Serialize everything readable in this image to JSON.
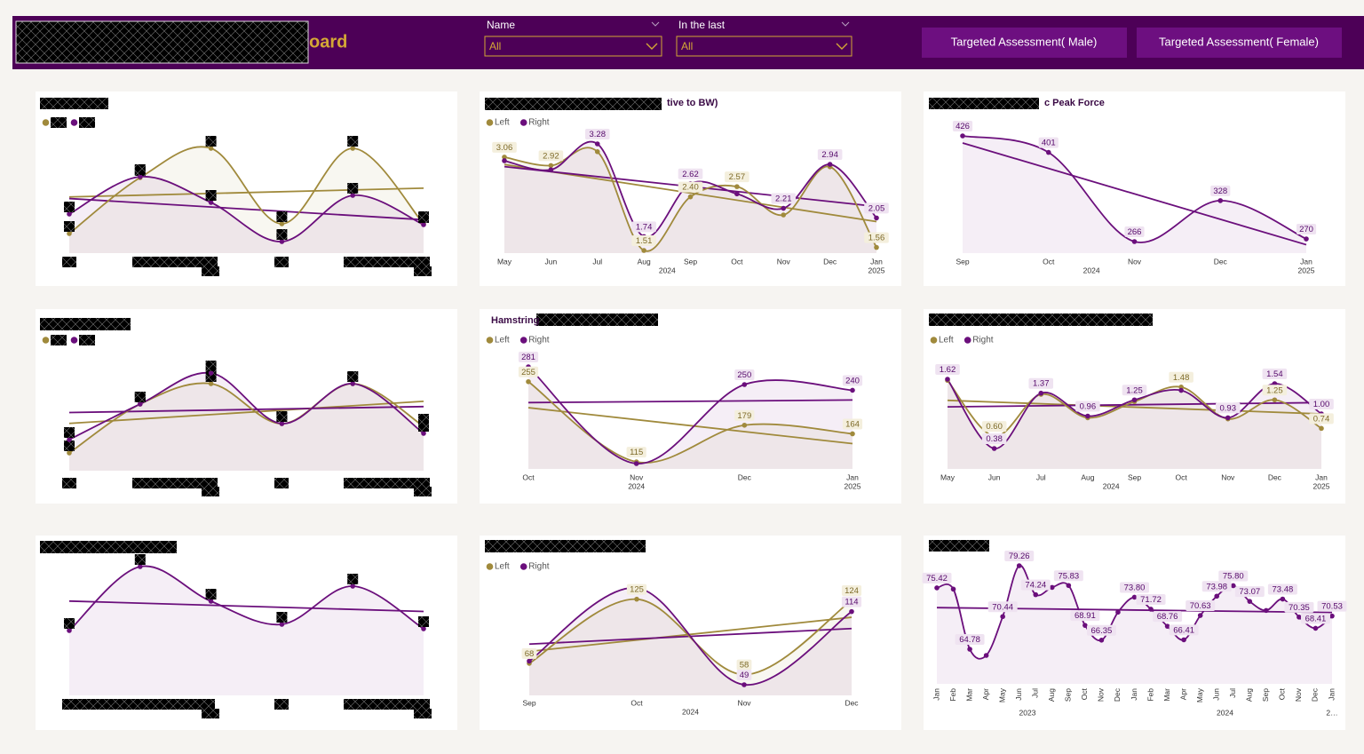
{
  "header": {
    "title": "oard",
    "filters": [
      {
        "label": "Name",
        "value": "All"
      },
      {
        "label": "In the last",
        "value": "All"
      }
    ],
    "buttons": [
      "Targeted Assessment( Male)",
      "Targeted Assessment( Female)"
    ]
  },
  "chart_data": [
    {
      "type": "line",
      "legend": true,
      "area": true,
      "trend": true,
      "categories": [
        null,
        null,
        null,
        null,
        null,
        null
      ],
      "series": [
        {
          "color": "#a08a3c",
          "values": [
            37,
            100,
            133,
            48,
            133,
            48
          ]
        },
        {
          "color": "#6b0f7c",
          "values": [
            59,
            101,
            72,
            28,
            80,
            47
          ]
        }
      ]
    },
    {
      "type": "line",
      "title": "tive to BW)",
      "legend": true,
      "area": true,
      "trend": true,
      "categories": [
        "May",
        "Jun",
        "Jul",
        "Aug",
        "Sep",
        "Oct",
        "Nov",
        "Dec",
        "Jan"
      ],
      "groups": [
        {
          "label": "2024",
          "from": 0,
          "to": 7
        },
        {
          "label": "2025",
          "from": 8,
          "to": 8
        }
      ],
      "series": [
        {
          "name": "Left",
          "color": "#a08a3c",
          "values": [
            3.06,
            2.92,
            3.15,
            1.51,
            2.4,
            2.57,
            2.1,
            2.9,
            1.56
          ],
          "value_labels": [
            "3.06",
            "2.92",
            null,
            "1.51",
            "2.40",
            "2.57",
            null,
            null,
            "1.56"
          ]
        },
        {
          "name": "Right",
          "color": "#6b0f7c",
          "values": [
            3.0,
            2.85,
            3.28,
            1.74,
            2.62,
            2.45,
            2.21,
            2.94,
            2.05
          ],
          "value_labels": [
            null,
            null,
            "3.28",
            "1.74",
            "2.62",
            null,
            "2.21",
            "2.94",
            "2.05"
          ]
        }
      ]
    },
    {
      "type": "line",
      "title": "c Peak Force",
      "legend": false,
      "area": true,
      "trend": true,
      "categories": [
        "Sep",
        "Oct",
        "Nov",
        "Dec",
        "Jan"
      ],
      "groups": [
        {
          "label": "2024",
          "from": 0,
          "to": 3
        },
        {
          "label": "2025",
          "from": 4,
          "to": 4
        }
      ],
      "series": [
        {
          "color": "#6b0f7c",
          "values": [
            426,
            401,
            266,
            328,
            270
          ],
          "value_labels": [
            "426",
            "401",
            "266",
            "328",
            "270"
          ]
        }
      ]
    },
    {
      "type": "line",
      "legend": true,
      "area": true,
      "trend": true,
      "categories": [
        null,
        null,
        null,
        null,
        null,
        null
      ],
      "series": [
        {
          "color": "#a08a3c",
          "values": [
            40,
            95,
            118,
            73,
            118,
            70
          ]
        },
        {
          "color": "#6b0f7c",
          "values": [
            55,
            95,
            130,
            73,
            118,
            62
          ]
        }
      ]
    },
    {
      "type": "line",
      "title": "Hamstring",
      "legend": true,
      "area": true,
      "trend": true,
      "categories": [
        "Oct",
        "Nov",
        "Dec",
        "Jan"
      ],
      "groups": [
        {
          "label": "2024",
          "from": 0,
          "to": 2
        },
        {
          "label": "2025",
          "from": 3,
          "to": 3
        }
      ],
      "series": [
        {
          "name": "Left",
          "color": "#a08a3c",
          "values": [
            255,
            115,
            179,
            164
          ],
          "value_labels": [
            "255",
            "115",
            "179",
            "164"
          ]
        },
        {
          "name": "Right",
          "color": "#6b0f7c",
          "values": [
            281,
            112,
            250,
            240
          ],
          "value_labels": [
            "281",
            null,
            "250",
            "240"
          ]
        }
      ]
    },
    {
      "type": "line",
      "legend": true,
      "area": true,
      "trend": true,
      "categories": [
        "May",
        "Jun",
        "Jul",
        "Aug",
        "Sep",
        "Oct",
        "Nov",
        "Dec",
        "Jan"
      ],
      "groups": [
        {
          "label": "2024",
          "from": 0,
          "to": 7
        },
        {
          "label": "2025",
          "from": 8,
          "to": 8
        }
      ],
      "series": [
        {
          "name": "Left",
          "color": "#a08a3c",
          "values": [
            1.6,
            0.6,
            1.35,
            0.93,
            1.22,
            1.48,
            0.91,
            1.25,
            0.74
          ],
          "value_labels": [
            null,
            "0.60",
            null,
            null,
            null,
            "1.48",
            null,
            "1.25",
            "0.74"
          ]
        },
        {
          "name": "Right",
          "color": "#6b0f7c",
          "values": [
            1.62,
            0.38,
            1.37,
            0.96,
            1.25,
            1.42,
            0.93,
            1.54,
            1.0
          ],
          "value_labels": [
            "1.62",
            "0.38",
            "1.37",
            "0.96",
            "1.25",
            null,
            "0.93",
            "1.54",
            "1.00"
          ]
        }
      ]
    },
    {
      "type": "line",
      "legend": false,
      "area": true,
      "trend": true,
      "categories": [
        null,
        null,
        null,
        null,
        null,
        null
      ],
      "series": [
        {
          "color": "#6b0f7c",
          "values": [
            90,
            162,
            123,
            97,
            140,
            92
          ]
        }
      ]
    },
    {
      "type": "line",
      "legend": true,
      "area": true,
      "trend": true,
      "categories": [
        "Sep",
        "Oct",
        "Nov",
        "Dec"
      ],
      "groups": [
        {
          "label": "2024",
          "from": 0,
          "to": 3
        }
      ],
      "series": [
        {
          "name": "Left",
          "color": "#a08a3c",
          "values": [
            68,
            125,
            58,
            124
          ],
          "value_labels": [
            "68",
            "125",
            "58",
            "124"
          ]
        },
        {
          "name": "Right",
          "color": "#6b0f7c",
          "values": [
            70,
            135,
            49,
            114
          ],
          "value_labels": [
            null,
            null,
            "49",
            "114"
          ]
        }
      ]
    },
    {
      "type": "line",
      "legend": false,
      "area": true,
      "trend": true,
      "categories": [
        "Jan",
        "Feb",
        "Mar",
        "Apr",
        "May",
        "Jun",
        "Jul",
        "Aug",
        "Sep",
        "Oct",
        "Nov",
        "Dec",
        "Jan",
        "Feb",
        "Mar",
        "Apr",
        "May",
        "Jun",
        "Jul",
        "Aug",
        "Sep",
        "Oct",
        "Nov",
        "Dec",
        "Jan"
      ],
      "groups": [
        {
          "label": "2023",
          "from": 0,
          "to": 11
        },
        {
          "label": "2024",
          "from": 12,
          "to": 23
        },
        {
          "label": "2…",
          "from": 24,
          "to": 24
        }
      ],
      "series": [
        {
          "color": "#6b0f7c",
          "values": [
            75.42,
            75.2,
            64.78,
            63.7,
            70.44,
            79.26,
            74.24,
            75.5,
            75.83,
            68.91,
            66.35,
            71.2,
            73.8,
            71.72,
            68.76,
            66.41,
            70.63,
            73.98,
            75.8,
            73.07,
            71.5,
            73.48,
            70.35,
            68.41,
            70.53
          ],
          "value_labels": [
            "75.42",
            null,
            "64.78",
            null,
            "70.44",
            "79.26",
            "74.24",
            null,
            "75.83",
            "68.91",
            "66.35",
            null,
            "73.80",
            "71.72",
            "68.76",
            "66.41",
            "70.63",
            "73.98",
            "75.80",
            "73.07",
            null,
            "73.48",
            "70.35",
            "68.41",
            "70.53"
          ]
        }
      ]
    }
  ]
}
